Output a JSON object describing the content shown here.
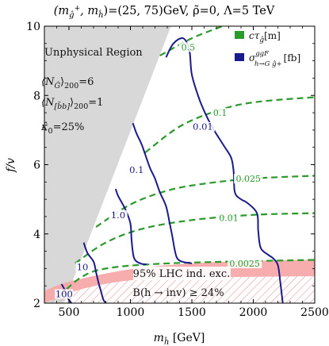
{
  "chart_data": {
    "type": "line",
    "title": "(m_{ĝ+}, m_{ĥ}) = (25, 75) GeV, ρ̃ = 0, Λ = 5 TeV",
    "title_parts": {
      "lhs": "(m",
      "sub1": "ĝ",
      "sup1": "+",
      "comma": ", m",
      "sub2": "ĥ",
      "rhs": ")=(25, 75)GeV, ρ̃=0, Λ=5 TeV"
    },
    "xlabel": "m",
    "xlabel_sub": "ĥ",
    "xlabel_unit": " [GeV]",
    "ylabel": "f/v",
    "xlim": [
      300,
      2500
    ],
    "ylim": [
      2,
      10
    ],
    "xticks": [
      500,
      1000,
      1500,
      2000,
      2500
    ],
    "yticks": [
      2,
      4,
      6,
      8,
      10
    ],
    "legend": {
      "position": "top-right",
      "green_label": "cτ",
      "green_sub": "ĝ",
      "green_unit": "[m]",
      "blue_label": "σ",
      "blue_sup": "ggF",
      "blue_sub": "h→G ĝ+",
      "blue_unit": "[fb]"
    },
    "colors": {
      "green": "#2a9a2a",
      "blue": "#1a1a8c",
      "gray": "#d8d8d8",
      "pink": "#f7a9a9",
      "hatch": "#e58a8a"
    },
    "regions": {
      "unphysical": {
        "label": "Unphysical Region",
        "boundary": [
          [
            300,
            2.0
          ],
          [
            460,
            2.0
          ],
          [
            1330,
            10.0
          ],
          [
            300,
            10.0
          ]
        ]
      },
      "lhc": {
        "label": "95% LHC ind. exc.",
        "lower": [
          [
            300,
            2.0
          ],
          [
            600,
            2.4
          ],
          [
            1000,
            2.66
          ],
          [
            1500,
            2.74
          ],
          [
            2000,
            2.76
          ],
          [
            2500,
            2.78
          ]
        ],
        "upper": [
          [
            300,
            2.35
          ],
          [
            500,
            2.62
          ],
          [
            1000,
            2.98
          ],
          [
            1500,
            3.15
          ],
          [
            2000,
            3.22
          ],
          [
            2500,
            3.25
          ]
        ]
      },
      "invisible": {
        "label": "B(h → inv) ≥ 24%",
        "top": [
          [
            300,
            2.0
          ],
          [
            600,
            2.4
          ],
          [
            1000,
            2.66
          ],
          [
            1500,
            2.74
          ],
          [
            2000,
            2.76
          ],
          [
            2500,
            2.78
          ]
        ]
      }
    },
    "annotations": [
      {
        "text": "⟨N",
        "sub": "Ĝ",
        "rhs": "⟩",
        "rsub": "200",
        "val": "=6"
      },
      {
        "text": "⟨N",
        "sub": "[b̃b]",
        "rhs": "⟩",
        "rsub": "200",
        "val": "=1"
      },
      {
        "text": "κ̂",
        "sub": "0",
        "rhs": "",
        "rsub": "",
        "val": "=25%"
      }
    ],
    "series": [
      {
        "name": "cτ",
        "kind": "green",
        "label": "0.5",
        "points": [
          [
            1240,
            9.15
          ],
          [
            1500,
            9.65
          ],
          [
            1750,
            10.0
          ]
        ],
        "label_at": [
          1470,
          9.35
        ]
      },
      {
        "name": "cτ",
        "kind": "green",
        "label": "0.1",
        "points": [
          [
            1120,
            6.35
          ],
          [
            1400,
            7.1
          ],
          [
            1700,
            7.55
          ],
          [
            2000,
            7.8
          ],
          [
            2500,
            7.95
          ]
        ],
        "label_at": [
          1730,
          7.45
        ]
      },
      {
        "name": "cτ",
        "kind": "green",
        "label": "0.025",
        "points": [
          [
            720,
            4.2
          ],
          [
            1000,
            4.85
          ],
          [
            1300,
            5.25
          ],
          [
            1600,
            5.45
          ],
          [
            2000,
            5.6
          ],
          [
            2500,
            5.68
          ]
        ],
        "label_at": [
          1960,
          5.55
        ]
      },
      {
        "name": "cτ",
        "kind": "green",
        "label": "0.01",
        "points": [
          [
            550,
            3.15
          ],
          [
            800,
            3.75
          ],
          [
            1100,
            4.15
          ],
          [
            1500,
            4.4
          ],
          [
            2000,
            4.55
          ],
          [
            2500,
            4.6
          ]
        ],
        "label_at": [
          1800,
          4.42
        ]
      },
      {
        "name": "cτ",
        "kind": "green",
        "label": "0.0025",
        "points": [
          [
            420,
            2.2
          ],
          [
            600,
            2.75
          ],
          [
            800,
            3.0
          ],
          [
            1200,
            3.13
          ],
          [
            1800,
            3.2
          ],
          [
            2500,
            3.25
          ]
        ],
        "label_at": [
          1930,
          3.1
        ]
      },
      {
        "name": "σ",
        "kind": "blue",
        "label": "0.01",
        "points": [
          [
            1290,
            9.1
          ],
          [
            1350,
            9.5
          ],
          [
            1430,
            9.65
          ],
          [
            1480,
            9.3
          ],
          [
            1500,
            8.6
          ],
          [
            1560,
            7.9
          ],
          [
            1620,
            7.4
          ],
          [
            1680,
            7.0
          ],
          [
            1760,
            6.55
          ],
          [
            1820,
            6.2
          ],
          [
            1840,
            5.8
          ],
          [
            1850,
            5.2
          ],
          [
            1900,
            5.0
          ],
          [
            1950,
            4.9
          ],
          [
            2030,
            4.6
          ],
          [
            2040,
            4.1
          ],
          [
            2060,
            3.6
          ],
          [
            2120,
            3.4
          ],
          [
            2160,
            3.3
          ],
          [
            2200,
            3.1
          ],
          [
            2220,
            2.6
          ],
          [
            2240,
            2.0
          ]
        ],
        "label_at": [
          1590,
          7.05
        ]
      },
      {
        "name": "σ",
        "kind": "blue",
        "label": "0.1",
        "points": [
          [
            1020,
            7.2
          ],
          [
            1050,
            6.9
          ],
          [
            1090,
            6.6
          ],
          [
            1120,
            6.3
          ],
          [
            1160,
            5.9
          ],
          [
            1200,
            5.6
          ],
          [
            1240,
            5.2
          ],
          [
            1290,
            4.8
          ],
          [
            1320,
            4.3
          ],
          [
            1340,
            3.95
          ],
          [
            1360,
            3.55
          ],
          [
            1380,
            3.3
          ],
          [
            1420,
            3.2
          ],
          [
            1500,
            3.15
          ]
        ],
        "label_at": [
          1050,
          5.8
        ]
      },
      {
        "name": "σ",
        "kind": "blue",
        "label": "1.0",
        "points": [
          [
            880,
            5.3
          ],
          [
            900,
            5.1
          ],
          [
            960,
            4.7
          ],
          [
            1000,
            4.3
          ],
          [
            1010,
            3.8
          ],
          [
            1030,
            3.3
          ],
          [
            1080,
            3.15
          ],
          [
            1130,
            3.12
          ]
        ],
        "label_at": [
          900,
          4.5
        ]
      },
      {
        "name": "σ",
        "kind": "blue",
        "label": "10",
        "points": [
          [
            620,
            3.75
          ],
          [
            650,
            3.45
          ],
          [
            700,
            3.2
          ],
          [
            720,
            2.9
          ],
          [
            740,
            2.6
          ],
          [
            760,
            2.35
          ],
          [
            780,
            2.1
          ],
          [
            800,
            2.0
          ]
        ],
        "label_at": [
          610,
          3.0
        ]
      },
      {
        "name": "σ",
        "kind": "blue",
        "label": "100",
        "points": [
          [
            440,
            2.55
          ],
          [
            470,
            2.35
          ],
          [
            490,
            2.15
          ],
          [
            520,
            2.0
          ]
        ],
        "label_at": [
          460,
          2.22
        ]
      }
    ]
  }
}
